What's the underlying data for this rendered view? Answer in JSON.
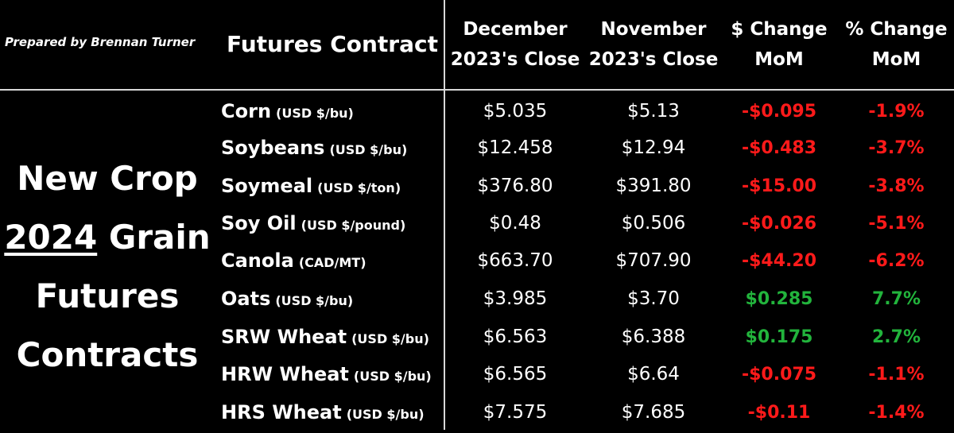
{
  "credit": "Prepared by Brennan Turner",
  "headers": {
    "contract": "Futures Contract",
    "december": [
      "December",
      "2023's Close"
    ],
    "november": [
      "November",
      "2023's Close"
    ],
    "dollar_change": [
      "$ Change",
      "MoM"
    ],
    "pct_change": [
      "% Change",
      "MoM"
    ]
  },
  "side_title": {
    "line1": "New Crop",
    "year": "2024",
    "line2_rest": " Grain",
    "line3": "Futures",
    "line4": "Contracts"
  },
  "rows": [
    {
      "name": "Corn",
      "unit": "(USD $/bu)",
      "dec": "$5.035",
      "nov": "$5.13",
      "chg": "-$0.095",
      "pct": "-1.9%",
      "dir": "neg"
    },
    {
      "name": "Soybeans",
      "unit": "(USD $/bu)",
      "dec": "$12.458",
      "nov": "$12.94",
      "chg": "-$0.483",
      "pct": "-3.7%",
      "dir": "neg"
    },
    {
      "name": "Soymeal",
      "unit": "(USD $/ton)",
      "dec": "$376.80",
      "nov": "$391.80",
      "chg": "-$15.00",
      "pct": "-3.8%",
      "dir": "neg"
    },
    {
      "name": "Soy Oil",
      "unit": "(USD $/pound)",
      "dec": "$0.48",
      "nov": "$0.506",
      "chg": "-$0.026",
      "pct": "-5.1%",
      "dir": "neg"
    },
    {
      "name": "Canola",
      "unit": "(CAD/MT)",
      "dec": "$663.70",
      "nov": "$707.90",
      "chg": "-$44.20",
      "pct": "-6.2%",
      "dir": "neg"
    },
    {
      "name": "Oats",
      "unit": "(USD $/bu)",
      "dec": "$3.985",
      "nov": "$3.70",
      "chg": "$0.285",
      "pct": "7.7%",
      "dir": "pos"
    },
    {
      "name": "SRW Wheat",
      "unit": "(USD $/bu)",
      "dec": "$6.563",
      "nov": "$6.388",
      "chg": "$0.175",
      "pct": "2.7%",
      "dir": "pos"
    },
    {
      "name": "HRW Wheat",
      "unit": "(USD $/bu)",
      "dec": "$6.565",
      "nov": "$6.64",
      "chg": "-$0.075",
      "pct": "-1.1%",
      "dir": "neg"
    },
    {
      "name": "HRS Wheat",
      "unit": "(USD $/bu)",
      "dec": "$7.575",
      "nov": "$7.685",
      "chg": "-$0.11",
      "pct": "-1.4%",
      "dir": "neg"
    }
  ],
  "colors": {
    "negative": "#ff1a1a",
    "positive": "#22b43c",
    "background": "#000000",
    "text": "#ffffff"
  }
}
